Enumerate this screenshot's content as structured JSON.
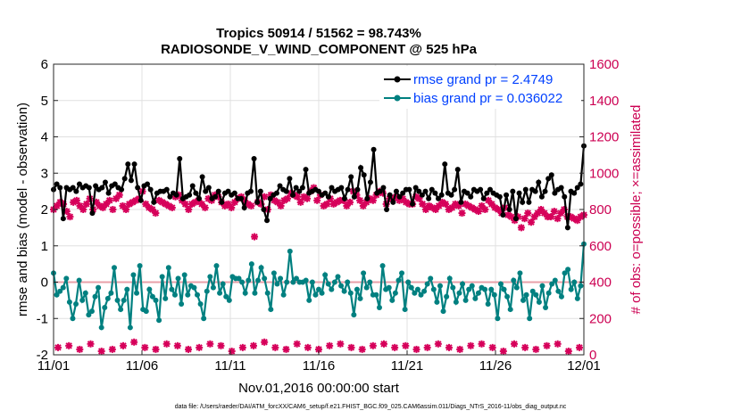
{
  "chart_data": {
    "type": "line",
    "title_line1": "Tropics 50914 / 51562 = 98.743%",
    "title_line2": "RADIOSONDE_V_WIND_COMPONENT @ 525 hPa",
    "xlabel": "Nov.01,2016 00:00:00 start",
    "ylabel_left": "rmse and bias (model - observation)",
    "ylabel_right": "# of obs: o=possible; ×=assimilated",
    "footnote": "data file: /Users/raeder/DAI/ATM_forcXX/CAM6_setup/f.e21.FHIST_BGC.f09_025.CAM6assim.011/Diags_NTrS_2016-11/obs_diag_output.nc",
    "x_ticks": [
      "11/01",
      "11/06",
      "11/11",
      "11/16",
      "11/21",
      "11/26",
      "12/01"
    ],
    "x_range_days": [
      0,
      30
    ],
    "y_left_range": [
      -2,
      6
    ],
    "y_left_ticks": [
      "-2",
      "-1",
      "0",
      "1",
      "2",
      "3",
      "4",
      "5",
      "6"
    ],
    "y_right_range": [
      0,
      1600
    ],
    "y_right_ticks": [
      "0",
      "200",
      "400",
      "600",
      "800",
      "1000",
      "1200",
      "1400",
      "1600"
    ],
    "legend": [
      {
        "label": "rmse grand pr = 2.4749"
      },
      {
        "label": "bias grand pr = 0.036022"
      }
    ],
    "colors": {
      "rmse": "#000000",
      "bias": "#008080",
      "obs": "#d6005a",
      "zero_line": "#e8a0a8",
      "right_axis": "#cc0052"
    },
    "series": [
      {
        "name": "rmse",
        "values": [
          2.55,
          2.7,
          2.6,
          1.75,
          2.6,
          2.55,
          2.6,
          2.5,
          2.7,
          2.6,
          2.65,
          2.6,
          1.9,
          2.65,
          2.55,
          2.6,
          2.75,
          2.45,
          2.65,
          2.7,
          2.6,
          2.55,
          2.85,
          3.25,
          2.8,
          3.25,
          2.6,
          2.25,
          2.65,
          2.7,
          2.55,
          2.2,
          2.45,
          2.5,
          2.5,
          2.55,
          2.35,
          2.45,
          2.4,
          3.4,
          2.3,
          2.35,
          2.4,
          2.65,
          2.45,
          2.3,
          2.9,
          2.5,
          2.6,
          2.3,
          2.35,
          2.5,
          2.2,
          2.45,
          2.5,
          2.4,
          2.45,
          2.3,
          2.3,
          2.05,
          2.45,
          2.5,
          3.4,
          2.2,
          2.5,
          2.0,
          1.7,
          2.3,
          2.4,
          2.45,
          2.65,
          2.55,
          2.5,
          2.85,
          2.4,
          2.6,
          2.5,
          2.6,
          3.1,
          2.45,
          2.5,
          2.55,
          2.5,
          2.4,
          2.45,
          2.35,
          2.6,
          2.5,
          2.55,
          2.6,
          2.3,
          2.55,
          2.9,
          2.35,
          2.55,
          3.15,
          2.95,
          2.3,
          2.75,
          3.65,
          2.45,
          2.5,
          2.6,
          2.0,
          2.4,
          2.2,
          2.5,
          2.35,
          2.45,
          2.55,
          2.55,
          2.15,
          2.6,
          2.5,
          2.4,
          2.5,
          2.3,
          2.55,
          2.45,
          2.3,
          2.4,
          3.25,
          2.45,
          2.4,
          2.55,
          3.1,
          2.2,
          2.5,
          2.45,
          2.35,
          2.55,
          2.5,
          2.55,
          2.3,
          2.45,
          2.55,
          2.45,
          2.4,
          2.35,
          1.85,
          2.4,
          2.0,
          2.5,
          1.75,
          2.45,
          2.2,
          2.55,
          2.2,
          2.55,
          2.5,
          2.75,
          2.35,
          2.5,
          2.85,
          2.95,
          2.45,
          2.55,
          2.6,
          2.35,
          1.5,
          2.5,
          2.45,
          2.6,
          2.7,
          3.75
        ]
      },
      {
        "name": "bias",
        "values": [
          0.25,
          -0.35,
          -0.25,
          -0.15,
          0.1,
          -0.55,
          -1.0,
          -0.6,
          0.05,
          -0.5,
          -0.3,
          -0.9,
          -0.8,
          -0.4,
          -0.15,
          -1.25,
          -0.7,
          -0.45,
          -0.3,
          0.4,
          -0.5,
          -0.75,
          -0.5,
          -0.2,
          -1.25,
          0.2,
          -0.3,
          0.45,
          -0.75,
          -0.8,
          -0.2,
          -0.4,
          -0.5,
          -1.05,
          0.15,
          -0.45,
          0.4,
          -0.2,
          -0.35,
          0.1,
          -0.6,
          0.2,
          -0.35,
          -0.1,
          -0.15,
          -0.35,
          -0.6,
          -1.0,
          -0.25,
          0.15,
          -0.15,
          0.45,
          -0.3,
          -0.05,
          -0.4,
          -0.5,
          0.15,
          0.1,
          0.1,
          0.0,
          -0.3,
          0.05,
          0.5,
          -0.3,
          0.05,
          0.4,
          0.1,
          -0.3,
          -0.75,
          0.25,
          -0.05,
          0.1,
          -0.35,
          0.0,
          0.85,
          0.0,
          0.1,
          0.0,
          0.0,
          0.05,
          -0.5,
          0.0,
          -0.35,
          -0.2,
          -0.3,
          0.2,
          -0.05,
          -0.2,
          0.0,
          0.15,
          -0.1,
          -0.25,
          0.0,
          -0.3,
          -0.9,
          -0.2,
          -0.45,
          0.25,
          -0.15,
          0.0,
          -0.35,
          -0.35,
          -0.7,
          0.45,
          -0.2,
          -0.15,
          -0.5,
          -0.3,
          0.05,
          0.25,
          -0.75,
          0.0,
          -0.15,
          -0.3,
          -0.2,
          -0.35,
          -0.25,
          -0.05,
          0.1,
          -0.2,
          -0.55,
          -0.1,
          -0.8,
          -0.4,
          0.1,
          -0.15,
          -0.55,
          -0.3,
          -0.05,
          -0.5,
          -0.2,
          -0.1,
          -0.45,
          -0.3,
          -0.15,
          -0.2,
          -0.6,
          -0.2,
          -0.35,
          -1.0,
          -0.05,
          -0.2,
          -0.4,
          -0.75,
          0.05,
          -0.15,
          0.25,
          -0.5,
          -0.35,
          -1.0,
          -0.25,
          -0.35,
          -0.55,
          -0.1,
          -0.7,
          -0.3,
          -0.05,
          0.05,
          -0.25,
          -0.4,
          0.25,
          0.35,
          -0.2,
          0.0,
          -0.45,
          -0.1,
          1.05
        ]
      },
      {
        "name": "obs_possible",
        "values": [
          800,
          820,
          840,
          830,
          790,
          760,
          840,
          850,
          820,
          800,
          830,
          860,
          800,
          840,
          820,
          810,
          830,
          850,
          800,
          860,
          880,
          820,
          800,
          830,
          840,
          850,
          860,
          900,
          830,
          810,
          800,
          780,
          850,
          840,
          830,
          820,
          810,
          870,
          880,
          850,
          830,
          800,
          830,
          840,
          850,
          830,
          810,
          860,
          850,
          880,
          870,
          840,
          820,
          830,
          810,
          840,
          860,
          870,
          850,
          830,
          820,
          650,
          840,
          830,
          870,
          800,
          880,
          850,
          840,
          820,
          850,
          860,
          890,
          880,
          870,
          840,
          870,
          860,
          900,
          920,
          850,
          880,
          820,
          830,
          860,
          830,
          840,
          850,
          850,
          820,
          840,
          900,
          880,
          850,
          820,
          840,
          860,
          850,
          880,
          900,
          890,
          830,
          860,
          860,
          870,
          850,
          860,
          840,
          830,
          830,
          870,
          860,
          830,
          800,
          820,
          810,
          800,
          820,
          840,
          830,
          800,
          810,
          830,
          820,
          780,
          830,
          820,
          810,
          800,
          790,
          820,
          800,
          850,
          830,
          810,
          800,
          780,
          810,
          770,
          760,
          740,
          760,
          700,
          750,
          780,
          730,
          760,
          780,
          800,
          780,
          760,
          760,
          790,
          750,
          780,
          800,
          760,
          760,
          750,
          740,
          760,
          770
        ]
      }
    ],
    "obs_low_values": [
      40,
      50,
      30,
      60,
      20,
      30,
      50,
      70,
      40,
      30,
      60,
      50,
      30,
      40,
      60,
      50,
      20,
      40,
      50,
      70,
      40,
      30,
      60,
      40,
      30,
      50,
      60,
      40,
      30,
      50,
      60,
      40,
      50,
      30,
      40,
      60,
      40,
      30,
      50,
      60,
      40,
      20,
      60,
      40,
      30,
      50,
      60,
      20,
      40
    ]
  }
}
